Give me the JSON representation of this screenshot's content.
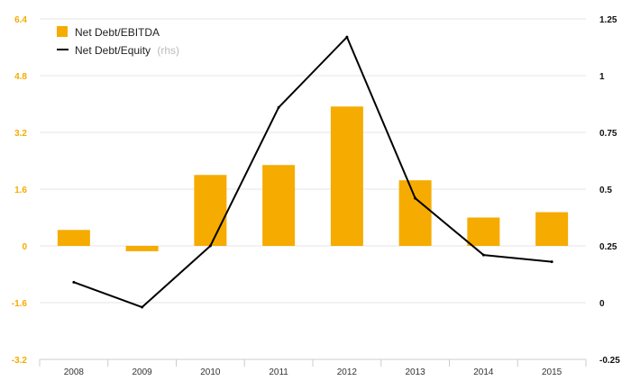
{
  "chart_data": {
    "type": "bar+line",
    "categories": [
      "2008",
      "2009",
      "2010",
      "2011",
      "2012",
      "2013",
      "2014",
      "2015"
    ],
    "series": [
      {
        "name": "Net Debt/EBITDA",
        "type": "bar",
        "axis": "left",
        "color": "#f6ab00",
        "values": [
          0.45,
          -0.15,
          2.0,
          2.28,
          3.93,
          1.85,
          0.8,
          0.95
        ]
      },
      {
        "name": "Net Debt/Equity",
        "name_suffix": "(rhs)",
        "type": "line",
        "axis": "right",
        "color": "#000000",
        "values": [
          0.09,
          -0.02,
          0.25,
          0.86,
          1.17,
          0.46,
          0.21,
          0.18
        ]
      }
    ],
    "y_left": {
      "ylim": [
        -3.2,
        6.4
      ],
      "ticks": [
        6.4,
        4.8,
        3.2,
        1.6,
        0,
        -1.6,
        -3.2
      ],
      "tick_labels": [
        "6.4",
        "4.8",
        "3.2",
        "1.6",
        "0",
        "-1.6",
        "-3.2"
      ],
      "color": "#f6ab00"
    },
    "y_right": {
      "ylim": [
        -0.25,
        1.25
      ],
      "ticks": [
        1.25,
        1,
        0.75,
        0.5,
        0.25,
        0,
        -0.25
      ],
      "tick_labels": [
        "1.25",
        "1",
        "0.75",
        "0.5",
        "0.25",
        "0",
        "-0.25"
      ],
      "color": "#111111"
    },
    "grid": true,
    "legend": "top-left",
    "title": "",
    "xlabel": "",
    "ylabel": ""
  }
}
